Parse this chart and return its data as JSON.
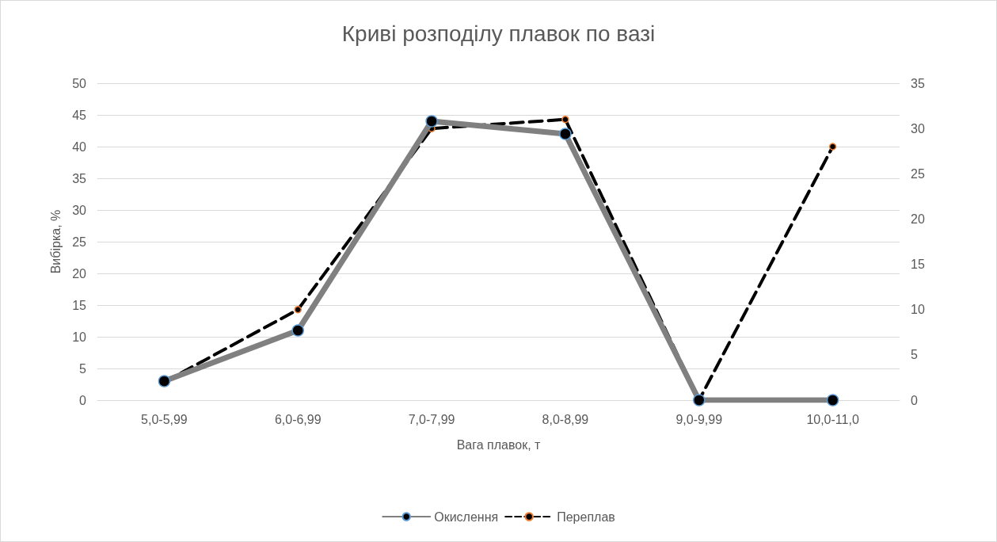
{
  "chart_data": {
    "type": "line",
    "title": "Криві розподілу плавок по вазі",
    "xlabel": "Вага плавок, т",
    "ylabel": "Вибірка, %",
    "categories": [
      "5,0-5,99",
      "6,0-6,99",
      "7,0-7,99",
      "8,0-8,99",
      "9,0-9,99",
      "10,0-11,0"
    ],
    "series": [
      {
        "name": "Окислення",
        "color": "#808080",
        "values": [
          3,
          11,
          44,
          42,
          0,
          0
        ],
        "line_style": "solid"
      },
      {
        "name": "Переплав",
        "color": "#000000",
        "values": [
          2,
          10,
          30,
          31,
          0,
          28
        ],
        "axis": "y2",
        "line_style": "dashed"
      }
    ],
    "ylim": [
      0,
      50
    ],
    "yticks": [
      0,
      5,
      10,
      15,
      20,
      25,
      30,
      35,
      40,
      45,
      50
    ],
    "y2lim": [
      0,
      35
    ],
    "y2ticks": [
      0,
      5,
      10,
      15,
      20,
      25,
      30,
      35
    ],
    "grid": "y",
    "legend": "bottom",
    "marker": "circle"
  }
}
